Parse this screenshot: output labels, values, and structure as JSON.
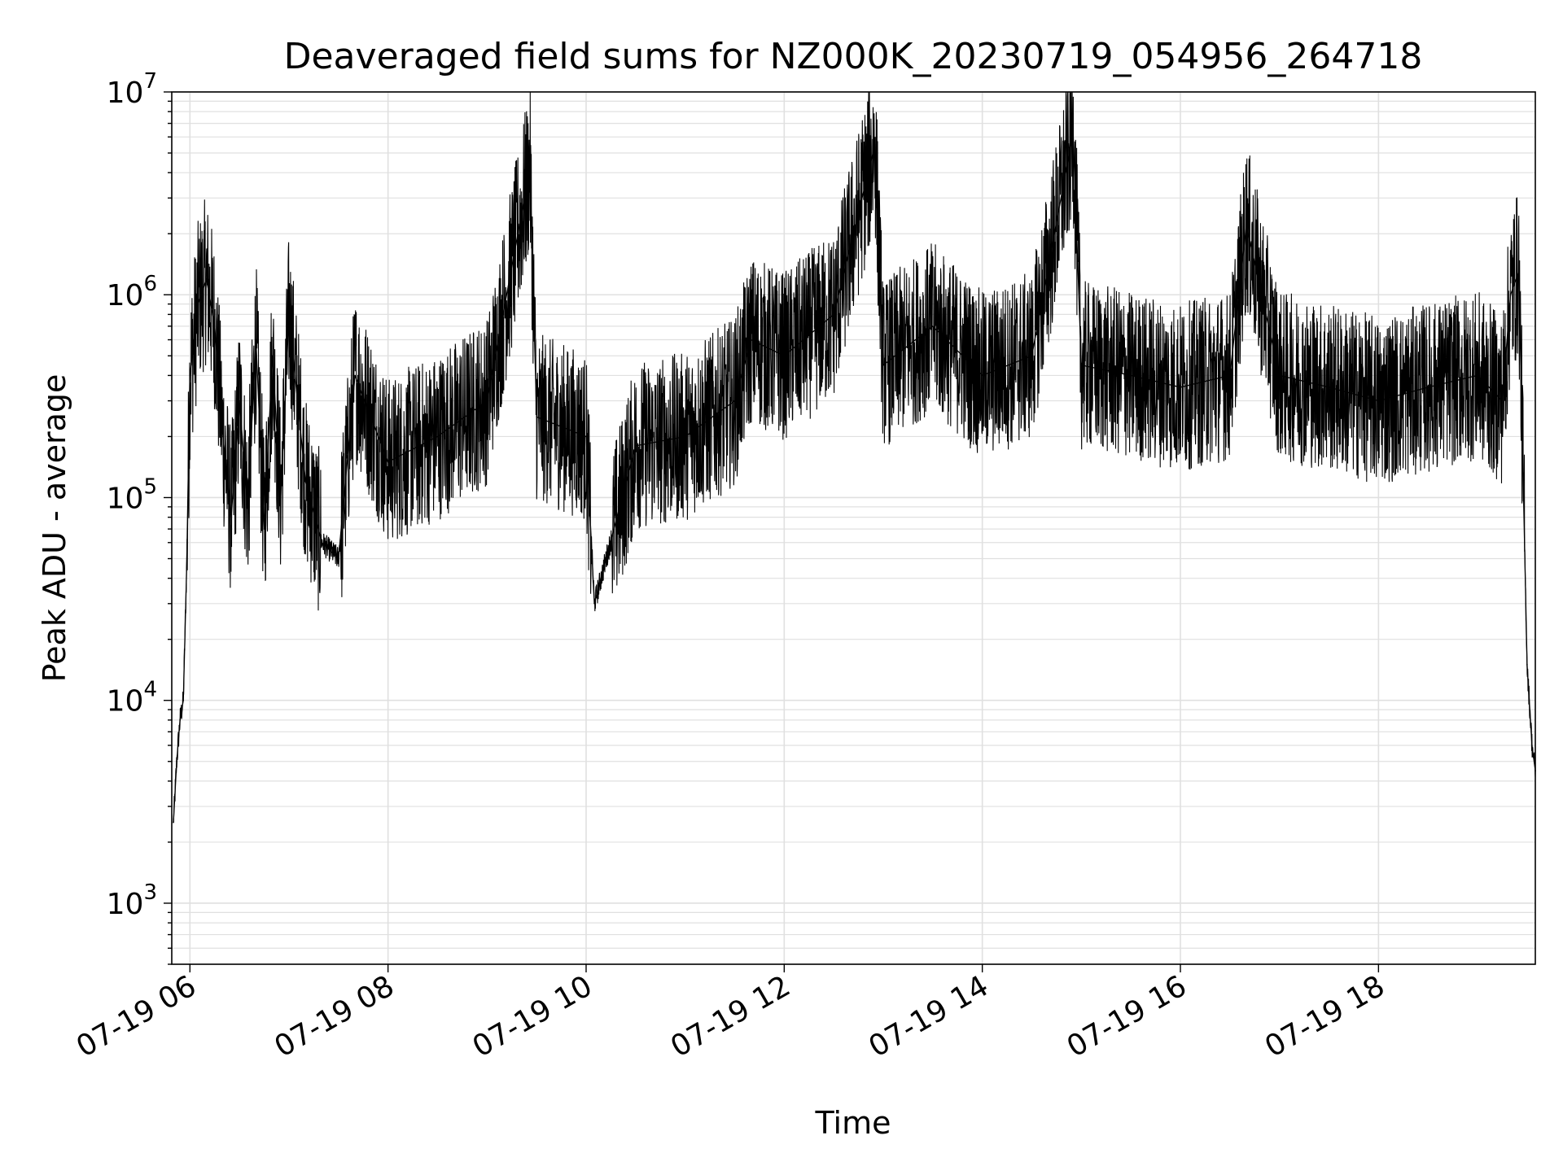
{
  "chart_data": {
    "type": "line",
    "title": "Deaveraged field sums for NZ000K_20230719_054956_264718",
    "xlabel": "Time",
    "ylabel": "Peak ADU - average",
    "y_scale": "log",
    "ylim": [
      500,
      10000000
    ],
    "xlim": [
      "2023-07-19 05:49",
      "2023-07-19 19:35"
    ],
    "x_ticks": [
      {
        "x": "2023-07-19 06:00",
        "label": "07-19 06"
      },
      {
        "x": "2023-07-19 08:00",
        "label": "07-19 08"
      },
      {
        "x": "2023-07-19 10:00",
        "label": "07-19 10"
      },
      {
        "x": "2023-07-19 12:00",
        "label": "07-19 12"
      },
      {
        "x": "2023-07-19 14:00",
        "label": "07-19 14"
      },
      {
        "x": "2023-07-19 16:00",
        "label": "07-19 16"
      },
      {
        "x": "2023-07-19 18:00",
        "label": "07-19 18"
      }
    ],
    "y_ticks": [
      {
        "y": 1000,
        "base": "10",
        "exp": "3"
      },
      {
        "y": 10000,
        "base": "10",
        "exp": "4"
      },
      {
        "y": 100000,
        "base": "10",
        "exp": "5"
      },
      {
        "y": 1000000,
        "base": "10",
        "exp": "6"
      },
      {
        "y": 10000000,
        "base": "10",
        "exp": "7"
      }
    ],
    "grid": true,
    "line_color": "#000000",
    "grid_color": "#e0e0e0",
    "series": [
      {
        "x": [
          "2023-07-19 05:50",
          "2023-07-19 05:52",
          "2023-07-19 05:54",
          "2023-07-19 05:56",
          "2023-07-19 05:58",
          "2023-07-19 06:00",
          "2023-07-19 06:05",
          "2023-07-19 06:10",
          "2023-07-19 06:15",
          "2023-07-19 06:20",
          "2023-07-19 06:25",
          "2023-07-19 06:30",
          "2023-07-19 06:35",
          "2023-07-19 06:40",
          "2023-07-19 06:45",
          "2023-07-19 06:50",
          "2023-07-19 06:55",
          "2023-07-19 07:00",
          "2023-07-19 07:10",
          "2023-07-19 07:20",
          "2023-07-19 07:30",
          "2023-07-19 07:40",
          "2023-07-19 08:00",
          "2023-07-19 08:30",
          "2023-07-19 09:00",
          "2023-07-19 09:26",
          "2023-07-19 09:30",
          "2023-07-19 10:00",
          "2023-07-19 10:05",
          "2023-07-19 10:30",
          "2023-07-19 11:00",
          "2023-07-19 11:30",
          "2023-07-19 11:40",
          "2023-07-19 12:00",
          "2023-07-19 12:30",
          "2023-07-19 12:55",
          "2023-07-19 13:00",
          "2023-07-19 13:30",
          "2023-07-19 14:00",
          "2023-07-19 14:30",
          "2023-07-19 14:55",
          "2023-07-19 15:00",
          "2023-07-19 15:30",
          "2023-07-19 16:00",
          "2023-07-19 16:30",
          "2023-07-19 16:40",
          "2023-07-19 17:00",
          "2023-07-19 17:30",
          "2023-07-19 18:00",
          "2023-07-19 18:30",
          "2023-07-19 19:00",
          "2023-07-19 19:15",
          "2023-07-19 19:20",
          "2023-07-19 19:25",
          "2023-07-19 19:30",
          "2023-07-19 19:33",
          "2023-07-19 19:35"
        ],
        "y": [
          2500,
          5000,
          8000,
          10000,
          45000,
          400000,
          900000,
          1200000,
          700000,
          200000,
          80000,
          300000,
          90000,
          600000,
          70000,
          500000,
          100000,
          800000,
          120000,
          60000,
          50000,
          400000,
          150000,
          200000,
          300000,
          4200000,
          250000,
          200000,
          30000,
          180000,
          200000,
          300000,
          600000,
          500000,
          800000,
          5500000,
          450000,
          700000,
          400000,
          500000,
          6300000,
          450000,
          400000,
          350000,
          400000,
          2200000,
          400000,
          350000,
          300000,
          350000,
          400000,
          300000,
          1000000,
          1300000,
          15000,
          6000,
          4500
        ]
      }
    ]
  }
}
